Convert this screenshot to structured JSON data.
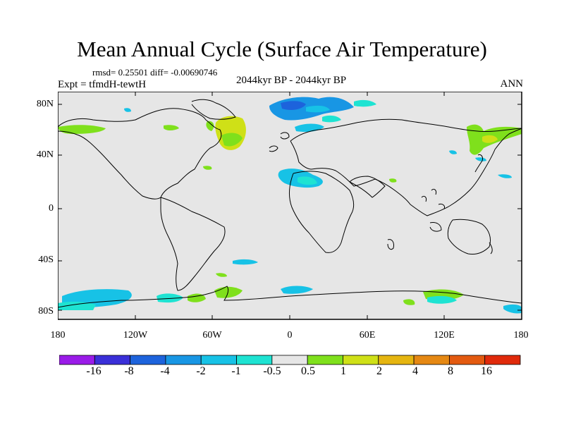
{
  "title": "Mean Annual Cycle (Surface Air Temperature)",
  "stats": "rmsd= 0.25501  diff= -0.00690746",
  "expt": "Expt = tfmdH-tewtH",
  "period": "2044kyr BP - 2044kyr BP",
  "season": "ANN",
  "lat_labels": [
    "80N",
    "40N",
    "0",
    "40S",
    "80S"
  ],
  "lon_labels": [
    "180",
    "120W",
    "60W",
    "0",
    "60E",
    "120E",
    "180"
  ],
  "colorbar": {
    "labels": [
      "-16",
      "-8",
      "-4",
      "-2",
      "-1",
      "-0.5",
      "0.5",
      "1",
      "2",
      "4",
      "8",
      "16"
    ],
    "colors": [
      "#9a1be8",
      "#3a2fd8",
      "#1d63dc",
      "#1896e4",
      "#17c2e6",
      "#1ee3d2",
      "#e6e6e6",
      "#7fe01c",
      "#cfe017",
      "#e5b510",
      "#e58813",
      "#e35a10",
      "#e02a0b"
    ]
  }
}
